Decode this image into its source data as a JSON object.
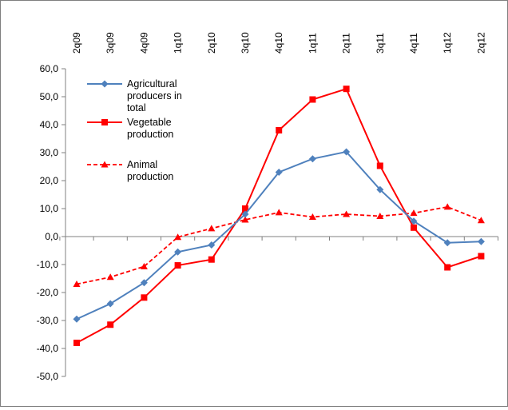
{
  "chart_data": {
    "type": "line",
    "title": "",
    "xlabel": "",
    "ylabel": "",
    "categories": [
      "2q09",
      "3q09",
      "4q09",
      "1q10",
      "2q10",
      "3q10",
      "4q10",
      "1q11",
      "2q11",
      "3q11",
      "4q11",
      "1q12",
      "2q12"
    ],
    "yticks": [
      "60,0",
      "50,0",
      "40,0",
      "30,0",
      "20,0",
      "10,0",
      "0,0",
      "-10,0",
      "-20,0",
      "-30,0",
      "-40,0",
      "-50,0"
    ],
    "ylim": [
      -50,
      60
    ],
    "ystep": 10,
    "grid": false,
    "legend_position": "top-left",
    "series": [
      {
        "name": "Agricultural producers in total",
        "legend_lines": [
          "Agricultural",
          "producers in",
          "total"
        ],
        "color": "#4f81bd",
        "marker": "diamond",
        "dash": "solid",
        "values": [
          -29.5,
          -24.0,
          -16.5,
          -5.5,
          -3.0,
          8.0,
          23.0,
          27.8,
          30.3,
          16.8,
          5.5,
          -2.2,
          -1.8
        ]
      },
      {
        "name": "Vegetable production",
        "legend_lines": [
          "Vegetable",
          "production"
        ],
        "color": "#ff0000",
        "marker": "square",
        "dash": "solid",
        "values": [
          -38.0,
          -31.5,
          -21.8,
          -10.3,
          -8.2,
          10.0,
          38.0,
          49.0,
          52.8,
          25.3,
          3.2,
          -11.0,
          -7.0
        ]
      },
      {
        "name": "Animal production",
        "legend_lines": [
          "Animal",
          "production"
        ],
        "color": "#ff0000",
        "marker": "triangle",
        "dash": "dashed",
        "values": [
          -17.0,
          -14.5,
          -10.7,
          -0.2,
          2.9,
          6.0,
          8.6,
          7.0,
          8.0,
          7.3,
          8.4,
          10.6,
          5.8
        ]
      }
    ]
  }
}
